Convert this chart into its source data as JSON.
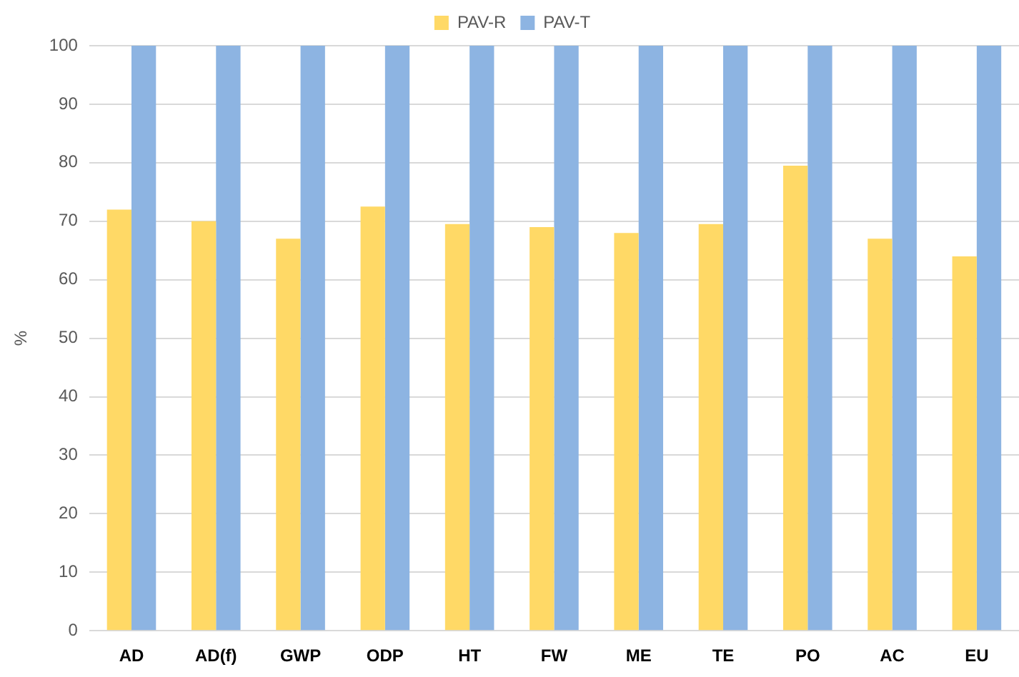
{
  "chart_data": {
    "type": "bar",
    "ylabel": "%",
    "categories": [
      "AD",
      "AD(f)",
      "GWP",
      "ODP",
      "HT",
      "FW",
      "ME",
      "TE",
      "PO",
      "AC",
      "EU"
    ],
    "series": [
      {
        "name": "PAV-R",
        "color": "#ffd966",
        "values": [
          72,
          70,
          67,
          72.5,
          69.5,
          69,
          68,
          69.5,
          79.5,
          67,
          64
        ]
      },
      {
        "name": "PAV-T",
        "color": "#8db4e2",
        "values": [
          100,
          100,
          100,
          100,
          100,
          100,
          100,
          100,
          100,
          100,
          100
        ]
      }
    ],
    "ylim": [
      0,
      100
    ],
    "yticks": [
      0,
      10,
      20,
      30,
      40,
      50,
      60,
      70,
      80,
      90,
      100
    ],
    "grid": "y",
    "legend": "top"
  }
}
